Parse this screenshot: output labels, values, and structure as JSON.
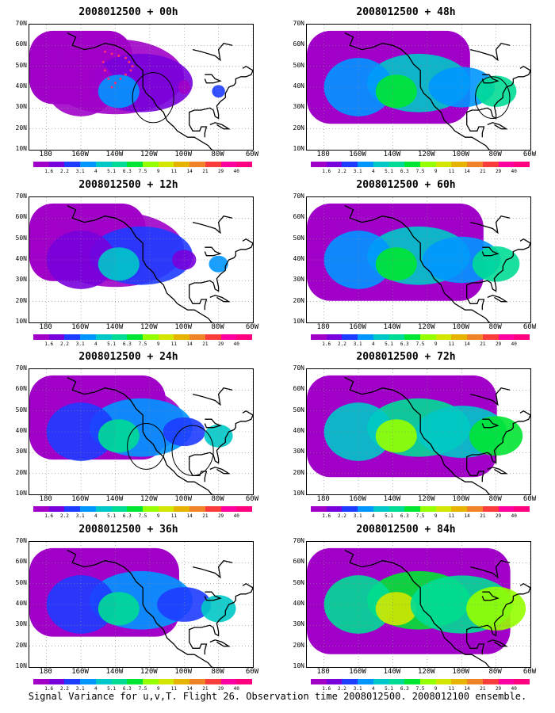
{
  "panels": [
    {
      "title": "2008012500 + 00h",
      "level": 0.1,
      "circles": [
        {
          "lon": -118,
          "lat": 35,
          "r": 12
        }
      ],
      "dots": true
    },
    {
      "title": "2008012500 + 48h",
      "level": 0.55,
      "circles": [
        {
          "lon": -82,
          "lat": 35,
          "r": 10
        }
      ],
      "dots": false
    },
    {
      "title": "2008012500 + 12h",
      "level": 0.2,
      "circles": [],
      "dots": false
    },
    {
      "title": "2008012500 + 60h",
      "level": 0.65,
      "circles": [],
      "dots": false
    },
    {
      "title": "2008012500 + 24h",
      "level": 0.35,
      "circles": [
        {
          "lon": -122,
          "lat": 33,
          "r": 11
        },
        {
          "lon": -95,
          "lat": 31,
          "r": 12
        }
      ],
      "dots": false
    },
    {
      "title": "2008012500 + 72h",
      "level": 0.75,
      "circles": [],
      "dots": false
    },
    {
      "title": "2008012500 + 36h",
      "level": 0.45,
      "circles": [],
      "dots": false
    },
    {
      "title": "2008012500 + 84h",
      "level": 0.85,
      "circles": [],
      "dots": false
    }
  ],
  "lat_ticks": [
    "10N",
    "20N",
    "30N",
    "40N",
    "50N",
    "60N",
    "70N"
  ],
  "lon_ticks": [
    "180",
    "160W",
    "140W",
    "120W",
    "100W",
    "80W",
    "60W"
  ],
  "colorbar": {
    "labels": [
      "1.6",
      "2.2",
      "3.1",
      "4",
      "5.1",
      "6.3",
      "7.5",
      "9",
      "11",
      "14",
      "21",
      "29",
      "40"
    ],
    "colors": [
      "#a000c8",
      "#7800dc",
      "#1e3cff",
      "#0096ff",
      "#00c8c8",
      "#00dc96",
      "#00e632",
      "#96ff00",
      "#d2e600",
      "#e6b400",
      "#f08228",
      "#fa3c3c",
      "#ff00a0",
      "#ff0080"
    ]
  },
  "footer": "Signal Variance for u,v,T. Flight 26. Observation time 2008012500. 2008012100 ensemble."
}
